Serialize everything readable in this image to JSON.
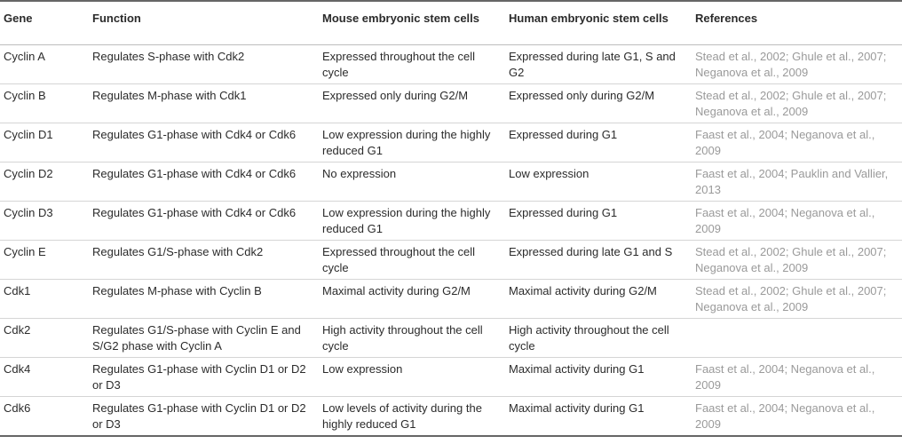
{
  "table": {
    "headers": [
      "Gene",
      "Function",
      "Mouse embryonic stem cells",
      "Human embryonic stem cells",
      "References"
    ],
    "rows": [
      [
        "Cyclin A",
        "Regulates S-phase with Cdk2",
        "Expressed throughout the cell cycle",
        "Expressed during late G1, S and G2",
        "Stead et al., 2002; Ghule et al., 2007; Neganova et al., 2009"
      ],
      [
        "Cyclin B",
        "Regulates M-phase with Cdk1",
        "Expressed only during G2/M",
        "Expressed only during G2/M",
        "Stead et al., 2002; Ghule et al., 2007; Neganova et al., 2009"
      ],
      [
        "Cyclin D1",
        "Regulates G1-phase with Cdk4 or Cdk6",
        "Low expression during the highly reduced G1",
        "Expressed during G1",
        "Faast et al., 2004; Neganova et al., 2009"
      ],
      [
        "Cyclin D2",
        "Regulates G1-phase with Cdk4 or Cdk6",
        "No expression",
        "Low expression",
        "Faast et al., 2004; Pauklin and Vallier, 2013"
      ],
      [
        "Cyclin D3",
        "Regulates G1-phase with Cdk4 or Cdk6",
        "Low expression during the highly reduced G1",
        "Expressed during G1",
        "Faast et al., 2004; Neganova et al., 2009"
      ],
      [
        "Cyclin E",
        "Regulates G1/S-phase with Cdk2",
        "Expressed throughout the cell cycle",
        "Expressed during late G1 and S",
        "Stead et al., 2002; Ghule et al., 2007; Neganova et al., 2009"
      ],
      [
        "Cdk1",
        "Regulates M-phase with Cyclin B",
        "Maximal activity during G2/M",
        "Maximal activity during G2/M",
        "Stead et al., 2002; Ghule et al., 2007; Neganova et al., 2009"
      ],
      [
        "Cdk2",
        "Regulates G1/S-phase with Cyclin E and S/G2 phase with Cyclin A",
        "High activity throughout the cell cycle",
        "High activity throughout the cell cycle",
        ""
      ],
      [
        "Cdk4",
        "Regulates G1-phase with Cyclin D1 or D2 or D3",
        "Low expression",
        "Maximal activity during G1",
        "Faast et al., 2004; Neganova et al., 2009"
      ],
      [
        "Cdk6",
        "Regulates G1-phase with Cyclin D1 or D2 or D3",
        "Low levels of activity during the highly reduced G1",
        "Maximal activity during G1",
        "Faast et al., 2004; Neganova et al., 2009"
      ]
    ]
  }
}
